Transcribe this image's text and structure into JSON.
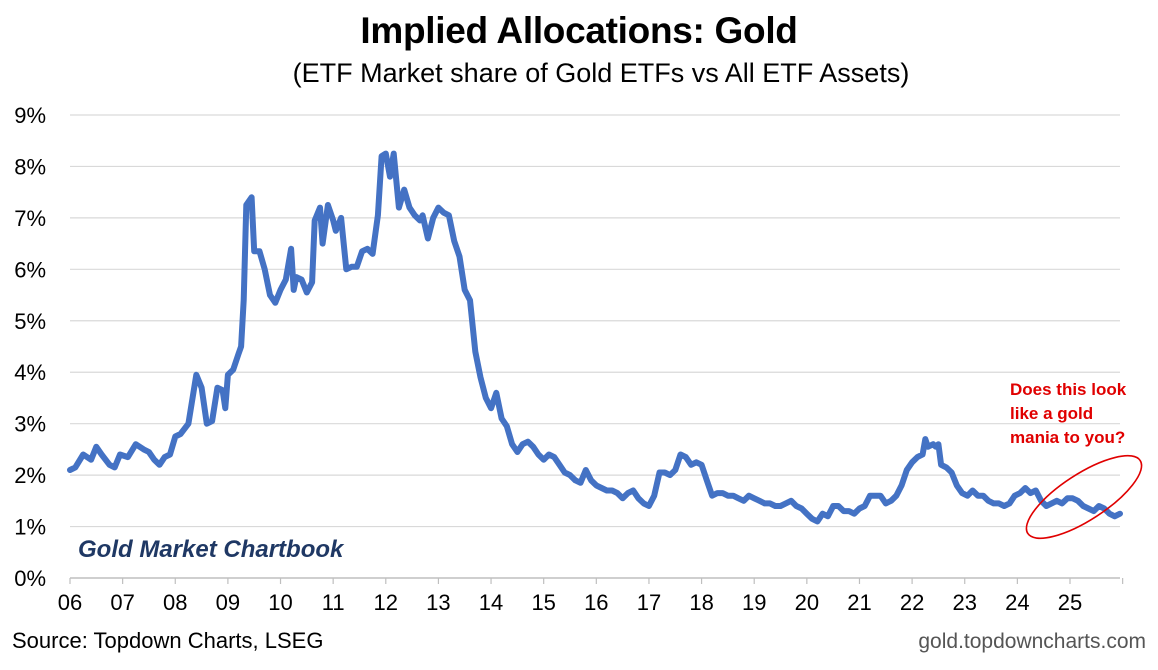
{
  "colors": {
    "line": "#4472c4",
    "grid": "#d9d9d9",
    "annotation": "#e00000",
    "watermark": "#1f3864"
  },
  "footer": {
    "source": "Source: Topdown Charts, LSEG",
    "site": "gold.topdowncharts.com"
  },
  "watermark": "Gold Market Chartbook",
  "annotation_lines": [
    "Does this look",
    "like a gold",
    "mania to you?"
  ],
  "chart_data": {
    "type": "line",
    "title": "Implied Allocations: Gold",
    "subtitle": "(ETF Market share of Gold ETFs vs All ETF Assets)",
    "xlabel": "",
    "ylabel": "",
    "ylim": [
      0,
      9
    ],
    "y_ticks": [
      "0%",
      "1%",
      "2%",
      "3%",
      "4%",
      "5%",
      "6%",
      "7%",
      "8%",
      "9%"
    ],
    "x_ticks": [
      "06",
      "07",
      "08",
      "09",
      "10",
      "11",
      "12",
      "13",
      "14",
      "15",
      "16",
      "17",
      "18",
      "19",
      "20",
      "21",
      "22",
      "23",
      "24",
      "25"
    ],
    "xlim": [
      2006.0,
      2025.95
    ],
    "grid": true,
    "legend": "none",
    "series": [
      {
        "values": [
          [
            2006.0,
            2.1
          ],
          [
            2006.1,
            2.15
          ],
          [
            2006.25,
            2.4
          ],
          [
            2006.4,
            2.3
          ],
          [
            2006.5,
            2.55
          ],
          [
            2006.6,
            2.4
          ],
          [
            2006.75,
            2.2
          ],
          [
            2006.85,
            2.15
          ],
          [
            2006.95,
            2.4
          ],
          [
            2007.1,
            2.35
          ],
          [
            2007.25,
            2.6
          ],
          [
            2007.4,
            2.5
          ],
          [
            2007.5,
            2.45
          ],
          [
            2007.6,
            2.3
          ],
          [
            2007.7,
            2.2
          ],
          [
            2007.8,
            2.35
          ],
          [
            2007.9,
            2.4
          ],
          [
            2008.0,
            2.75
          ],
          [
            2008.1,
            2.8
          ],
          [
            2008.25,
            3.0
          ],
          [
            2008.4,
            3.95
          ],
          [
            2008.5,
            3.7
          ],
          [
            2008.6,
            3.0
          ],
          [
            2008.7,
            3.05
          ],
          [
            2008.8,
            3.7
          ],
          [
            2008.9,
            3.65
          ],
          [
            2008.95,
            3.3
          ],
          [
            2009.0,
            3.95
          ],
          [
            2009.1,
            4.05
          ],
          [
            2009.2,
            4.35
          ],
          [
            2009.25,
            4.5
          ],
          [
            2009.3,
            5.4
          ],
          [
            2009.35,
            7.25
          ],
          [
            2009.45,
            7.4
          ],
          [
            2009.5,
            6.35
          ],
          [
            2009.6,
            6.35
          ],
          [
            2009.7,
            6.0
          ],
          [
            2009.8,
            5.5
          ],
          [
            2009.9,
            5.35
          ],
          [
            2010.0,
            5.6
          ],
          [
            2010.1,
            5.8
          ],
          [
            2010.2,
            6.4
          ],
          [
            2010.25,
            5.6
          ],
          [
            2010.3,
            5.85
          ],
          [
            2010.4,
            5.8
          ],
          [
            2010.5,
            5.55
          ],
          [
            2010.6,
            5.75
          ],
          [
            2010.65,
            6.95
          ],
          [
            2010.75,
            7.2
          ],
          [
            2010.8,
            6.5
          ],
          [
            2010.9,
            7.25
          ],
          [
            2011.0,
            6.95
          ],
          [
            2011.05,
            6.75
          ],
          [
            2011.15,
            7.0
          ],
          [
            2011.25,
            6.0
          ],
          [
            2011.35,
            6.05
          ],
          [
            2011.45,
            6.05
          ],
          [
            2011.55,
            6.35
          ],
          [
            2011.65,
            6.4
          ],
          [
            2011.75,
            6.3
          ],
          [
            2011.85,
            7.05
          ],
          [
            2011.92,
            8.2
          ],
          [
            2012.0,
            8.25
          ],
          [
            2012.08,
            7.8
          ],
          [
            2012.15,
            8.25
          ],
          [
            2012.25,
            7.2
          ],
          [
            2012.35,
            7.55
          ],
          [
            2012.45,
            7.2
          ],
          [
            2012.55,
            7.05
          ],
          [
            2012.65,
            6.95
          ],
          [
            2012.7,
            7.05
          ],
          [
            2012.8,
            6.6
          ],
          [
            2012.9,
            7.0
          ],
          [
            2013.0,
            7.2
          ],
          [
            2013.1,
            7.1
          ],
          [
            2013.2,
            7.05
          ],
          [
            2013.3,
            6.55
          ],
          [
            2013.4,
            6.25
          ],
          [
            2013.5,
            5.6
          ],
          [
            2013.6,
            5.4
          ],
          [
            2013.7,
            4.4
          ],
          [
            2013.8,
            3.9
          ],
          [
            2013.9,
            3.5
          ],
          [
            2014.0,
            3.3
          ],
          [
            2014.1,
            3.6
          ],
          [
            2014.2,
            3.1
          ],
          [
            2014.3,
            2.95
          ],
          [
            2014.4,
            2.6
          ],
          [
            2014.5,
            2.45
          ],
          [
            2014.6,
            2.6
          ],
          [
            2014.7,
            2.65
          ],
          [
            2014.8,
            2.55
          ],
          [
            2014.9,
            2.4
          ],
          [
            2015.0,
            2.3
          ],
          [
            2015.1,
            2.4
          ],
          [
            2015.2,
            2.35
          ],
          [
            2015.3,
            2.2
          ],
          [
            2015.4,
            2.05
          ],
          [
            2015.5,
            2.0
          ],
          [
            2015.6,
            1.9
          ],
          [
            2015.7,
            1.85
          ],
          [
            2015.8,
            2.1
          ],
          [
            2015.9,
            1.9
          ],
          [
            2016.0,
            1.8
          ],
          [
            2016.1,
            1.75
          ],
          [
            2016.2,
            1.7
          ],
          [
            2016.3,
            1.7
          ],
          [
            2016.4,
            1.65
          ],
          [
            2016.5,
            1.55
          ],
          [
            2016.6,
            1.65
          ],
          [
            2016.7,
            1.7
          ],
          [
            2016.8,
            1.55
          ],
          [
            2016.9,
            1.45
          ],
          [
            2017.0,
            1.4
          ],
          [
            2017.1,
            1.6
          ],
          [
            2017.2,
            2.05
          ],
          [
            2017.3,
            2.05
          ],
          [
            2017.4,
            2.0
          ],
          [
            2017.5,
            2.1
          ],
          [
            2017.6,
            2.4
          ],
          [
            2017.7,
            2.35
          ],
          [
            2017.8,
            2.2
          ],
          [
            2017.9,
            2.25
          ],
          [
            2018.0,
            2.2
          ],
          [
            2018.1,
            1.9
          ],
          [
            2018.2,
            1.6
          ],
          [
            2018.3,
            1.65
          ],
          [
            2018.4,
            1.65
          ],
          [
            2018.5,
            1.6
          ],
          [
            2018.6,
            1.6
          ],
          [
            2018.7,
            1.55
          ],
          [
            2018.8,
            1.5
          ],
          [
            2018.9,
            1.6
          ],
          [
            2019.0,
            1.55
          ],
          [
            2019.1,
            1.5
          ],
          [
            2019.2,
            1.45
          ],
          [
            2019.3,
            1.45
          ],
          [
            2019.4,
            1.4
          ],
          [
            2019.5,
            1.4
          ],
          [
            2019.6,
            1.45
          ],
          [
            2019.7,
            1.5
          ],
          [
            2019.8,
            1.4
          ],
          [
            2019.9,
            1.35
          ],
          [
            2020.0,
            1.25
          ],
          [
            2020.1,
            1.15
          ],
          [
            2020.2,
            1.1
          ],
          [
            2020.3,
            1.25
          ],
          [
            2020.4,
            1.2
          ],
          [
            2020.5,
            1.4
          ],
          [
            2020.6,
            1.4
          ],
          [
            2020.7,
            1.3
          ],
          [
            2020.8,
            1.3
          ],
          [
            2020.9,
            1.25
          ],
          [
            2021.0,
            1.35
          ],
          [
            2021.1,
            1.4
          ],
          [
            2021.2,
            1.6
          ],
          [
            2021.3,
            1.6
          ],
          [
            2021.4,
            1.6
          ],
          [
            2021.5,
            1.45
          ],
          [
            2021.6,
            1.5
          ],
          [
            2021.7,
            1.6
          ],
          [
            2021.8,
            1.8
          ],
          [
            2021.9,
            2.1
          ],
          [
            2022.0,
            2.25
          ],
          [
            2022.1,
            2.35
          ],
          [
            2022.2,
            2.4
          ],
          [
            2022.25,
            2.7
          ],
          [
            2022.3,
            2.55
          ],
          [
            2022.4,
            2.6
          ],
          [
            2022.45,
            2.55
          ],
          [
            2022.5,
            2.6
          ],
          [
            2022.55,
            2.2
          ],
          [
            2022.65,
            2.15
          ],
          [
            2022.75,
            2.05
          ],
          [
            2022.85,
            1.8
          ],
          [
            2022.95,
            1.65
          ],
          [
            2023.05,
            1.6
          ],
          [
            2023.15,
            1.7
          ],
          [
            2023.25,
            1.6
          ],
          [
            2023.35,
            1.6
          ],
          [
            2023.45,
            1.5
          ],
          [
            2023.55,
            1.45
          ],
          [
            2023.65,
            1.45
          ],
          [
            2023.75,
            1.4
          ],
          [
            2023.85,
            1.45
          ],
          [
            2023.95,
            1.6
          ],
          [
            2024.05,
            1.65
          ],
          [
            2024.15,
            1.75
          ],
          [
            2024.25,
            1.65
          ],
          [
            2024.35,
            1.7
          ],
          [
            2024.45,
            1.5
          ],
          [
            2024.55,
            1.4
          ],
          [
            2024.65,
            1.45
          ],
          [
            2024.75,
            1.5
          ],
          [
            2024.85,
            1.45
          ],
          [
            2024.95,
            1.55
          ],
          [
            2025.05,
            1.55
          ],
          [
            2025.15,
            1.5
          ],
          [
            2025.25,
            1.4
          ],
          [
            2025.35,
            1.35
          ],
          [
            2025.45,
            1.3
          ],
          [
            2025.55,
            1.4
          ],
          [
            2025.65,
            1.35
          ],
          [
            2025.75,
            1.25
          ],
          [
            2025.85,
            1.2
          ],
          [
            2025.95,
            1.25
          ]
        ]
      }
    ]
  }
}
